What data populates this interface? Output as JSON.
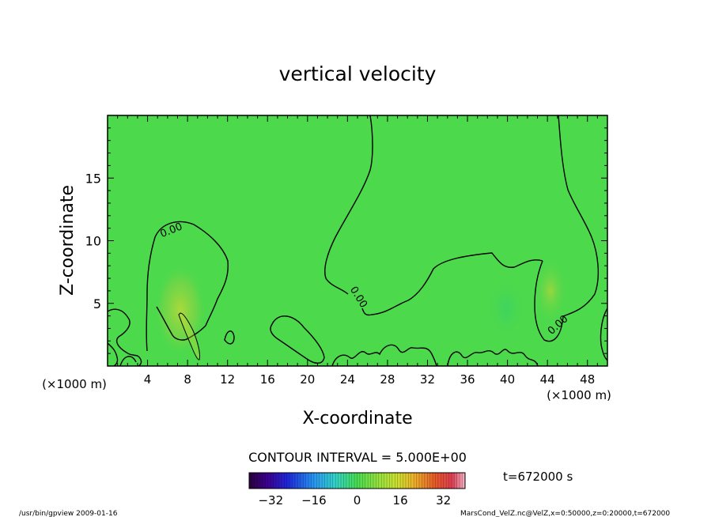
{
  "chart_data": {
    "type": "heatmap",
    "title": "vertical velocity",
    "xlabel": "X-coordinate",
    "ylabel": "Z-coordinate",
    "x_unit_left": "(×1000 m)",
    "x_unit_right": "(×1000 m)",
    "xlim": [
      0,
      50
    ],
    "ylim": [
      0,
      20
    ],
    "x_ticks": [
      4,
      8,
      12,
      16,
      20,
      24,
      28,
      32,
      36,
      40,
      44,
      48
    ],
    "y_ticks": [
      5,
      10,
      15
    ],
    "contour_interval_text": "CONTOUR INTERVAL = 5.000E+00",
    "contour_label": "0.00",
    "time_text": "t=672000 s",
    "colorbar": {
      "min": -40,
      "max": 40,
      "ticks": [
        -32,
        -16,
        0,
        16,
        32
      ]
    },
    "field_features": [
      {
        "kind": "updraft",
        "x": 7,
        "z": 3.5,
        "note": "weak positive (yellow-green)"
      },
      {
        "kind": "updraft",
        "x": 44,
        "z": 6.5,
        "note": "weak positive (yellow-green)"
      },
      {
        "kind": "downdraft",
        "x": 40,
        "z": 4,
        "note": "weak negative"
      }
    ],
    "colors": {
      "background_field": "#4cd94c",
      "contour": "#000000"
    }
  },
  "footer": {
    "left": "/usr/bin/gpview   2009-01-16",
    "right": "MarsCond_VelZ.nc@VelZ,x=0:50000,z=0:20000,t=672000"
  }
}
